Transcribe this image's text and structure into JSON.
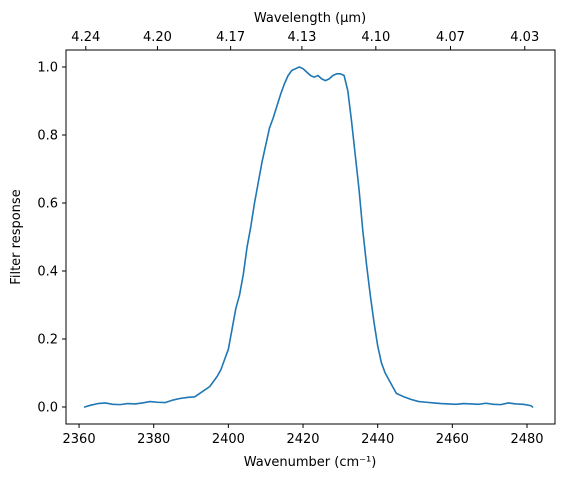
{
  "chart_data": {
    "type": "line",
    "title": "",
    "xlabel": "Wavenumber (cm⁻¹)",
    "ylabel": "Filter response",
    "top_xlabel": "Wavelength (μm)",
    "xlim": [
      2356.5,
      2487.5
    ],
    "ylim": [
      -0.05,
      1.05
    ],
    "x_ticks": [
      2360,
      2380,
      2400,
      2420,
      2440,
      2460,
      2480
    ],
    "x_tick_labels": [
      "2360",
      "2380",
      "2400",
      "2420",
      "2440",
      "2460",
      "2480"
    ],
    "y_ticks": [
      0.0,
      0.2,
      0.4,
      0.6,
      0.8,
      1.0
    ],
    "y_tick_labels": [
      "0.0",
      "0.2",
      "0.4",
      "0.6",
      "0.8",
      "1.0"
    ],
    "top_ticks": [
      {
        "label": "4.24",
        "wavenumber": 2361.8
      },
      {
        "label": "4.20",
        "wavenumber": 2381.0
      },
      {
        "label": "4.17",
        "wavenumber": 2400.6
      },
      {
        "label": "4.13",
        "wavenumber": 2419.7
      },
      {
        "label": "4.10",
        "wavenumber": 2439.5
      },
      {
        "label": "4.07",
        "wavenumber": 2459.5
      },
      {
        "label": "4.03",
        "wavenumber": 2479.4
      }
    ],
    "grid": false,
    "series": [
      {
        "color": "#1f77b4",
        "x": [
          2361.5,
          2363,
          2365,
          2367,
          2369,
          2371,
          2373,
          2375,
          2377,
          2379,
          2381,
          2383,
          2385,
          2387,
          2389,
          2391,
          2393,
          2395,
          2396,
          2397,
          2398,
          2399,
          2400,
          2401,
          2402,
          2403,
          2404,
          2405,
          2406,
          2407,
          2408,
          2409,
          2410,
          2411,
          2412,
          2413,
          2414,
          2415,
          2416,
          2417,
          2418,
          2419,
          2420,
          2421,
          2422,
          2423,
          2424,
          2425,
          2426,
          2427,
          2428,
          2429,
          2430,
          2431,
          2432,
          2433,
          2434,
          2435,
          2436,
          2437,
          2438,
          2439,
          2440,
          2441,
          2442,
          2443,
          2444,
          2445,
          2447,
          2449,
          2451,
          2453,
          2455,
          2457,
          2459,
          2461,
          2463,
          2465,
          2467,
          2469,
          2471,
          2473,
          2475,
          2477,
          2479,
          2481,
          2481.5
        ],
        "y": [
          0.0,
          0.005,
          0.01,
          0.012,
          0.008,
          0.007,
          0.01,
          0.009,
          0.012,
          0.016,
          0.014,
          0.013,
          0.02,
          0.025,
          0.028,
          0.03,
          0.045,
          0.06,
          0.075,
          0.09,
          0.11,
          0.14,
          0.17,
          0.23,
          0.29,
          0.33,
          0.39,
          0.47,
          0.53,
          0.6,
          0.66,
          0.72,
          0.77,
          0.82,
          0.85,
          0.885,
          0.92,
          0.95,
          0.975,
          0.99,
          0.995,
          1.0,
          0.995,
          0.985,
          0.975,
          0.97,
          0.975,
          0.965,
          0.96,
          0.965,
          0.975,
          0.98,
          0.98,
          0.975,
          0.93,
          0.84,
          0.74,
          0.64,
          0.52,
          0.42,
          0.33,
          0.25,
          0.18,
          0.13,
          0.1,
          0.08,
          0.06,
          0.04,
          0.03,
          0.022,
          0.016,
          0.014,
          0.012,
          0.01,
          0.009,
          0.008,
          0.01,
          0.009,
          0.008,
          0.011,
          0.008,
          0.007,
          0.012,
          0.009,
          0.008,
          0.004,
          0.0
        ]
      }
    ]
  }
}
